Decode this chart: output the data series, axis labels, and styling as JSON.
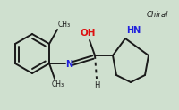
{
  "bg_color": "#cfe0cf",
  "bond_color": "#1a1a1a",
  "n_color": "#2222dd",
  "o_color": "#dd1111",
  "text_color": "#1a1a1a",
  "chiral_label": "Chiral",
  "oh_label": "OH",
  "hn_label": "HN",
  "n_label": "N",
  "h_label": "H",
  "ch3_top_label": "CH₃",
  "ch3_bot_label": "CH₃",
  "figw": 2.0,
  "figh": 1.23,
  "dpi": 100
}
